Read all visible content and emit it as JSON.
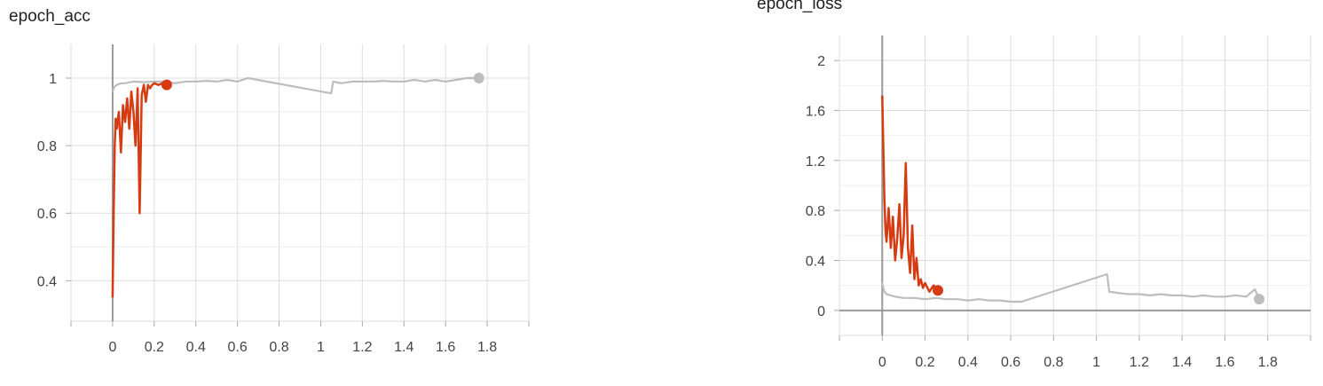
{
  "colors": {
    "series_orange": "#d63b12",
    "series_gray": "#bdbdbd",
    "grid": "#dddddd",
    "axis": "#999999"
  },
  "chart_data": [
    {
      "type": "line",
      "title": "epoch_acc",
      "xlim": [
        -0.2,
        2.0
      ],
      "ylim": [
        0.28,
        1.1
      ],
      "x_ticks": [
        "0",
        "0.2",
        "0.4",
        "0.6",
        "0.8",
        "1",
        "1.2",
        "1.4",
        "1.6",
        "1.8"
      ],
      "x_tick_values": [
        0,
        0.2,
        0.4,
        0.6,
        0.8,
        1.0,
        1.2,
        1.4,
        1.6,
        1.8
      ],
      "y_ticks": [
        "0.4",
        "0.6",
        "0.8",
        "1"
      ],
      "y_tick_values": [
        0.4,
        0.6,
        0.8,
        1.0
      ],
      "grid": true,
      "series": [
        {
          "color": "#bdbdbd",
          "end_marker": true,
          "x": [
            0,
            0.005,
            0.01,
            0.02,
            0.04,
            0.06,
            0.1,
            0.15,
            0.2,
            0.25,
            0.3,
            0.35,
            0.4,
            0.45,
            0.5,
            0.55,
            0.6,
            0.65,
            1.05,
            1.06,
            1.1,
            1.15,
            1.2,
            1.25,
            1.3,
            1.35,
            1.4,
            1.45,
            1.5,
            1.55,
            1.6,
            1.65,
            1.7,
            1.76
          ],
          "y": [
            0.96,
            0.97,
            0.975,
            0.98,
            0.985,
            0.985,
            0.99,
            0.988,
            0.99,
            0.99,
            0.985,
            0.99,
            0.99,
            0.992,
            0.99,
            0.995,
            0.99,
            1.0,
            0.955,
            0.99,
            0.985,
            0.99,
            0.99,
            0.99,
            0.992,
            0.99,
            0.99,
            0.995,
            0.99,
            0.995,
            0.99,
            0.995,
            1.0,
            1.0
          ]
        },
        {
          "color": "#d63b12",
          "end_marker": true,
          "x": [
            0,
            0.005,
            0.01,
            0.015,
            0.02,
            0.03,
            0.04,
            0.05,
            0.06,
            0.07,
            0.08,
            0.09,
            0.1,
            0.11,
            0.12,
            0.13,
            0.14,
            0.15,
            0.16,
            0.17,
            0.18,
            0.19,
            0.2,
            0.22,
            0.24,
            0.26
          ],
          "y": [
            0.35,
            0.6,
            0.8,
            0.88,
            0.85,
            0.9,
            0.78,
            0.92,
            0.87,
            0.94,
            0.85,
            0.96,
            0.9,
            0.8,
            0.97,
            0.6,
            0.95,
            0.98,
            0.93,
            0.98,
            0.97,
            0.98,
            0.985,
            0.98,
            0.985,
            0.98
          ]
        }
      ]
    },
    {
      "type": "line",
      "title": "epoch_loss",
      "xlim": [
        -0.2,
        2.0
      ],
      "ylim": [
        -0.2,
        2.2
      ],
      "x_ticks": [
        "0",
        "0.2",
        "0.4",
        "0.6",
        "0.8",
        "1",
        "1.2",
        "1.4",
        "1.6",
        "1.8"
      ],
      "x_tick_values": [
        0,
        0.2,
        0.4,
        0.6,
        0.8,
        1.0,
        1.2,
        1.4,
        1.6,
        1.8
      ],
      "y_ticks": [
        "0",
        "0.4",
        "0.8",
        "1.2",
        "1.6",
        "2"
      ],
      "y_tick_values": [
        0,
        0.4,
        0.8,
        1.2,
        1.6,
        2.0
      ],
      "grid": true,
      "series": [
        {
          "color": "#bdbdbd",
          "end_marker": true,
          "x": [
            0,
            0.005,
            0.01,
            0.02,
            0.04,
            0.06,
            0.1,
            0.15,
            0.2,
            0.25,
            0.3,
            0.35,
            0.4,
            0.45,
            0.5,
            0.55,
            0.6,
            0.65,
            1.05,
            1.06,
            1.1,
            1.15,
            1.2,
            1.25,
            1.3,
            1.35,
            1.4,
            1.45,
            1.5,
            1.55,
            1.6,
            1.65,
            1.7,
            1.74,
            1.76
          ],
          "y": [
            0.22,
            0.18,
            0.15,
            0.13,
            0.12,
            0.11,
            0.1,
            0.1,
            0.09,
            0.1,
            0.09,
            0.09,
            0.08,
            0.09,
            0.08,
            0.08,
            0.07,
            0.07,
            0.29,
            0.15,
            0.14,
            0.13,
            0.13,
            0.12,
            0.13,
            0.12,
            0.12,
            0.11,
            0.12,
            0.11,
            0.11,
            0.12,
            0.11,
            0.17,
            0.09
          ]
        },
        {
          "color": "#d63b12",
          "end_marker": true,
          "x": [
            0,
            0.005,
            0.01,
            0.015,
            0.02,
            0.03,
            0.04,
            0.05,
            0.06,
            0.07,
            0.08,
            0.09,
            0.1,
            0.11,
            0.12,
            0.13,
            0.14,
            0.15,
            0.16,
            0.17,
            0.18,
            0.19,
            0.2,
            0.22,
            0.24,
            0.26
          ],
          "y": [
            1.72,
            1.3,
            0.9,
            0.65,
            0.55,
            0.82,
            0.5,
            0.75,
            0.4,
            0.58,
            0.85,
            0.42,
            0.6,
            1.18,
            0.5,
            0.3,
            0.68,
            0.25,
            0.42,
            0.2,
            0.25,
            0.18,
            0.22,
            0.15,
            0.2,
            0.16
          ]
        }
      ]
    }
  ]
}
